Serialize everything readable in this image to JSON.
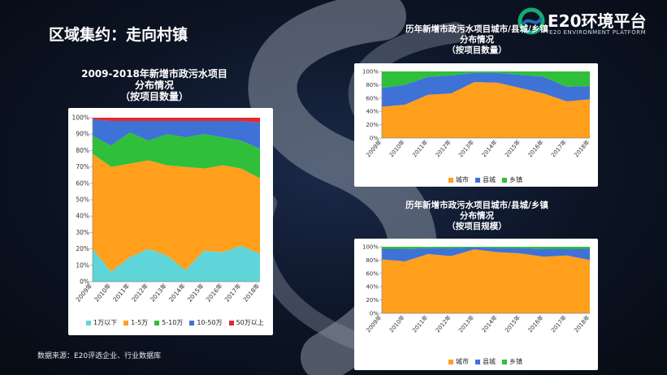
{
  "slide": {
    "title": "区域集约：走向村镇",
    "source": "数据来源：E20评选企业、行业数据库"
  },
  "brand": {
    "name": "E20环境平台",
    "sub": "E20 ENVIRONMENT PLATFORM",
    "colors": [
      "#19a974",
      "#1e6fb8"
    ]
  },
  "chart_data": [
    {
      "id": "left",
      "type": "area",
      "stacked": "percent",
      "title_lines": [
        "2009-2018年新增市政污水项目",
        "分布情况",
        "（按项目数量）"
      ],
      "categories": [
        "2009年",
        "2010年",
        "2011年",
        "2012年",
        "2013年",
        "2014年",
        "2015年",
        "2016年",
        "2017年",
        "2018年"
      ],
      "y_ticks": [
        "0%",
        "10%",
        "20%",
        "30%",
        "40%",
        "50%",
        "60%",
        "70%",
        "80%",
        "90%",
        "100%"
      ],
      "ylim": [
        0,
        100
      ],
      "legend_position": "bottom",
      "series": [
        {
          "name": "1万以下",
          "color": "#5fd5d9",
          "values": [
            20,
            6,
            15,
            20,
            16,
            7,
            19,
            18,
            22,
            17
          ]
        },
        {
          "name": "1-5万",
          "color": "#ff9f1c",
          "values": [
            58,
            64,
            57,
            54,
            55,
            63,
            50,
            53,
            47,
            46
          ]
        },
        {
          "name": "5-10万",
          "color": "#2fbf3a",
          "values": [
            11,
            13,
            19,
            12,
            19,
            18,
            21,
            17,
            17,
            18
          ]
        },
        {
          "name": "10-50万",
          "color": "#3f72d6",
          "values": [
            10,
            15,
            7,
            12,
            8,
            10,
            8,
            10,
            12,
            16
          ]
        },
        {
          "name": "50万以上",
          "color": "#e5282c",
          "values": [
            1,
            2,
            2,
            2,
            2,
            2,
            2,
            2,
            2,
            3
          ]
        }
      ]
    },
    {
      "id": "topright",
      "type": "area",
      "stacked": "percent",
      "title_lines": [
        "历年新增市政污水项目城市/县城/乡镇",
        "分布情况",
        "（按项目数量）"
      ],
      "categories": [
        "2009年",
        "2010年",
        "2011年",
        "2012年",
        "2013年",
        "2014年",
        "2015年",
        "2016年",
        "2017年",
        "2018年"
      ],
      "y_ticks": [
        "0%",
        "20%",
        "40%",
        "60%",
        "80%",
        "100%"
      ],
      "ylim": [
        0,
        100
      ],
      "legend_position": "bottom",
      "series": [
        {
          "name": "城市",
          "color": "#ff9f1c",
          "values": [
            47,
            50,
            65,
            67,
            84,
            83,
            75,
            67,
            55,
            58
          ]
        },
        {
          "name": "县城",
          "color": "#3f72d6",
          "values": [
            28,
            30,
            27,
            27,
            14,
            15,
            20,
            25,
            22,
            20
          ]
        },
        {
          "name": "乡镇",
          "color": "#2fbf3a",
          "values": [
            25,
            20,
            8,
            6,
            2,
            2,
            5,
            8,
            23,
            22
          ]
        }
      ]
    },
    {
      "id": "bottomright",
      "type": "area",
      "stacked": "percent",
      "title_lines": [
        "历年新增市政污水项目城市/县城/乡镇",
        "分布情况",
        "（按项目规模）"
      ],
      "categories": [
        "2009年",
        "2010年",
        "2011年",
        "2012年",
        "2013年",
        "2014年",
        "2015年",
        "2016年",
        "2017年",
        "2018年"
      ],
      "y_ticks": [
        "0%",
        "20%",
        "40%",
        "60%",
        "80%",
        "100%"
      ],
      "ylim": [
        0,
        100
      ],
      "legend_position": "bottom",
      "series": [
        {
          "name": "城市",
          "color": "#ff9f1c",
          "values": [
            81,
            78,
            89,
            86,
            96,
            92,
            90,
            85,
            87,
            80
          ]
        },
        {
          "name": "县城",
          "color": "#3f72d6",
          "values": [
            16,
            19,
            9,
            12,
            3,
            6,
            8,
            12,
            10,
            17
          ]
        },
        {
          "name": "乡镇",
          "color": "#2fbf3a",
          "values": [
            3,
            3,
            2,
            2,
            1,
            2,
            2,
            3,
            3,
            3
          ]
        }
      ]
    }
  ]
}
